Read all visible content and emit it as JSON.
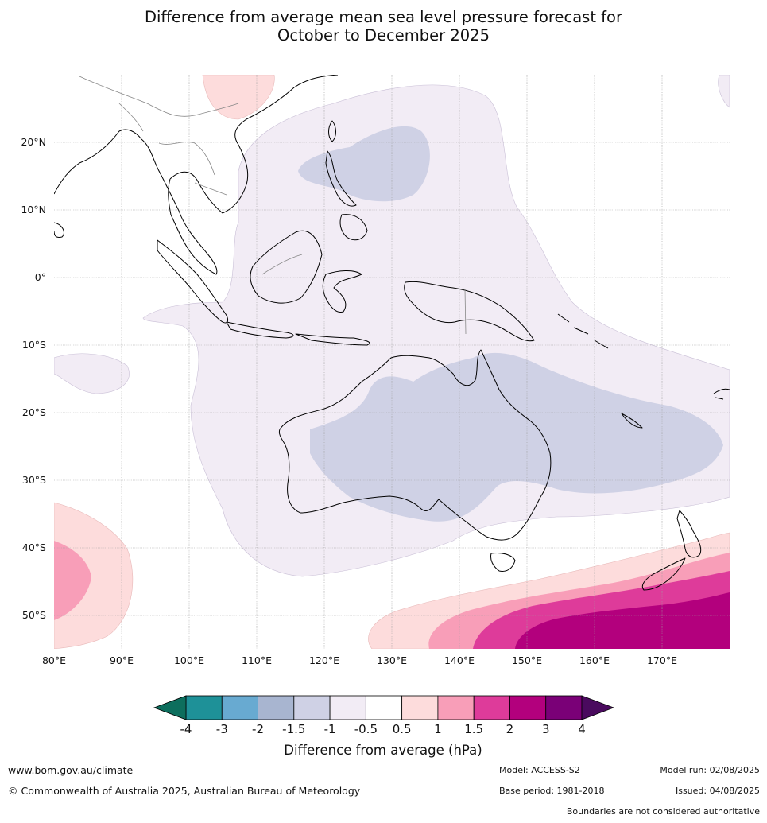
{
  "title": {
    "line1": "Difference from average mean sea level pressure forecast for",
    "line2": "October to December 2025"
  },
  "map": {
    "longitude_labels": [
      "80°E",
      "90°E",
      "100°E",
      "110°E",
      "120°E",
      "130°E",
      "140°E",
      "150°E",
      "160°E",
      "170°E"
    ],
    "latitude_labels": [
      "20°N",
      "10°N",
      "0°",
      "10°S",
      "20°S",
      "30°S",
      "40°S",
      "50°S"
    ],
    "extent": {
      "lon_min": 80,
      "lon_max": 180,
      "lat_min": -55,
      "lat_max": 30
    },
    "regions": [
      {
        "name": "north-pacific-weak-negative",
        "band": "-1 to -0.5"
      },
      {
        "name": "philippine-sea-negative",
        "band": "-1.5 to -1"
      },
      {
        "name": "australia-negative",
        "band": "-1.5 to -1"
      },
      {
        "name": "southern-ocean-positive",
        "band": "0.5 to 3"
      },
      {
        "name": "indian-ocean-positive",
        "band": "0.5 to 1.5"
      }
    ]
  },
  "colorbar": {
    "title": "Difference from average (hPa)",
    "ticks": [
      "-4",
      "-3",
      "-2",
      "-1.5",
      "-1",
      "-0.5",
      "0.5",
      "1",
      "1.5",
      "2",
      "3",
      "4"
    ],
    "low_extend_color": "#0d6e5d",
    "high_extend_color": "#4a0a5e",
    "colors": [
      "#1e9198",
      "#68aad1",
      "#a8b5d0",
      "#cfd1e5",
      "#f2ecf5",
      "#ffffff",
      "#fddcdc",
      "#f89eb8",
      "#de3b9a",
      "#b3007d",
      "#7a0077"
    ]
  },
  "footer": {
    "website": "www.bom.gov.au/climate",
    "copyright": "© Commonwealth of Australia 2025, Australian Bureau of Meteorology",
    "model": "Model: ACCESS-S2",
    "base_period": "Base period: 1981-2018",
    "model_run": "Model run: 02/08/2025",
    "issued": "Issued: 04/08/2025",
    "disclaimer": "Boundaries are not considered authoritative"
  }
}
